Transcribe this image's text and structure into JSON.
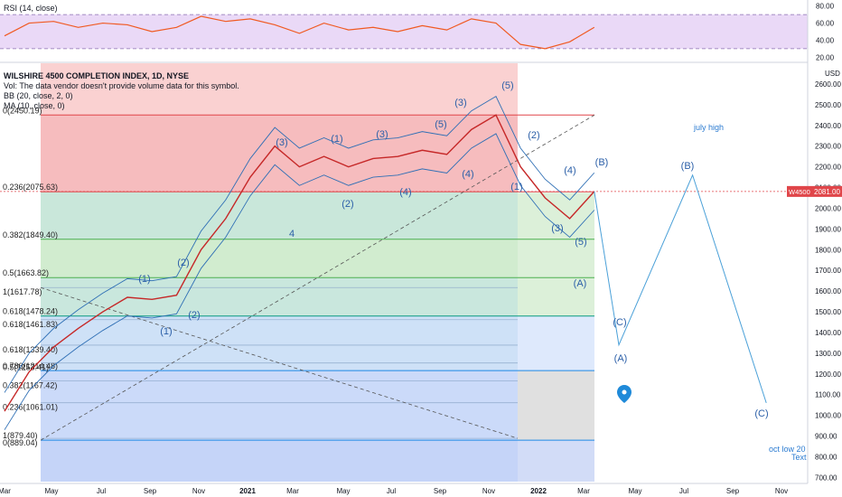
{
  "rsi_panel": {
    "label": "RSI (14, close)",
    "y_ticks": [
      "80.00",
      "60.00",
      "40.00",
      "20.00"
    ],
    "bands": [
      70,
      30
    ],
    "ylim": [
      15,
      85
    ]
  },
  "legend": {
    "title": "WILSHIRE 4500 COMPLETION INDEX, 1D, NYSE",
    "vol_note": "Vol: The data vendor doesn't provide volume data for this symbol.",
    "bb": "BB (20, close, 2, 0)",
    "ma": "MA (10, close, 0)"
  },
  "price_axis": {
    "currency": "USD",
    "ticks": [
      "2600.00",
      "2500.00",
      "2400.00",
      "2300.00",
      "2200.00",
      "2100.00",
      "2000.00",
      "1900.00",
      "1800.00",
      "1700.00",
      "1600.00",
      "1500.00",
      "1400.00",
      "1300.00",
      "1200.00",
      "1100.00",
      "1000.00",
      "900.00",
      "800.00",
      "700.00"
    ],
    "current_symbol": "W4500",
    "current_price": "2081.00"
  },
  "time_axis": {
    "ticks": [
      "Mar",
      "May",
      "Jul",
      "Sep",
      "Nov",
      "2021",
      "Mar",
      "May",
      "Jul",
      "Sep",
      "Nov",
      "2022",
      "Mar",
      "May",
      "Jul",
      "Sep",
      "Nov"
    ]
  },
  "fib_levels": {
    "items": [
      {
        "ratio": 0,
        "label": "0(2450.19)",
        "color": "#e0464a"
      },
      {
        "ratio": 0.236,
        "label": "0.236(2075.63)",
        "color": "#e0464a"
      },
      {
        "ratio": 0.382,
        "label": "0.382(1849.40)",
        "color": "#4caf50"
      },
      {
        "ratio": 0.5,
        "label": "0.5(1663.82)",
        "color": "#4caf50"
      },
      {
        "ratio": 0.618,
        "label": "0.618(1478.24)",
        "color": "#089981"
      },
      {
        "ratio": 0.786,
        "label": "0.786(1214.48)",
        "color": "#1e88e5"
      },
      {
        "ratio": 1,
        "label": "1(879.40)",
        "color": "#1e88e5"
      }
    ],
    "extra_labels": [
      "1(1617.78)",
      "0.618(1461.83)",
      "0.618(1339.40)",
      "0.5(1253.41)",
      "0.382(1167.42)",
      "0.236(1061.01)",
      "0(889.04)"
    ]
  },
  "annotations": {
    "july_high": "july high",
    "oct_low": "oct low  20 1",
    "text_note": "Text"
  },
  "wave_labels": [
    {
      "text": "(1)"
    },
    {
      "text": "(2)"
    },
    {
      "text": "(1)"
    },
    {
      "text": "(2)"
    },
    {
      "text": "(3)"
    },
    {
      "text": "4"
    },
    {
      "text": "(1)"
    },
    {
      "text": "(2)"
    },
    {
      "text": "(3)"
    },
    {
      "text": "(4)"
    },
    {
      "text": "(5)"
    },
    {
      "text": "(3)"
    },
    {
      "text": "(4)"
    },
    {
      "text": "(5)"
    },
    {
      "text": "(1)"
    },
    {
      "text": "(2)"
    },
    {
      "text": "(3)"
    },
    {
      "text": "(4)"
    },
    {
      "text": "(5)"
    },
    {
      "text": "(A)"
    },
    {
      "text": "(B)"
    },
    {
      "text": "(C)"
    },
    {
      "text": "(A)"
    },
    {
      "text": "(B)"
    },
    {
      "text": "(C)"
    }
  ],
  "chart_data": {
    "type": "line",
    "title": "WILSHIRE 4500 COMPLETION INDEX, 1D, NYSE",
    "xlabel": "",
    "ylabel": "",
    "ylim": [
      680,
      2700
    ],
    "x": [
      "2020-03",
      "2020-04",
      "2020-05",
      "2020-06",
      "2020-07",
      "2020-08",
      "2020-09",
      "2020-10",
      "2020-11",
      "2020-12",
      "2021-01",
      "2021-02",
      "2021-03",
      "2021-04",
      "2021-05",
      "2021-06",
      "2021-07",
      "2021-08",
      "2021-09",
      "2021-10",
      "2021-11",
      "2021-12",
      "2022-01",
      "2022-02",
      "2022-03"
    ],
    "series": [
      {
        "values": [
          1020,
          1210,
          1330,
          1420,
          1500,
          1570,
          1560,
          1580,
          1800,
          1950,
          2150,
          2300,
          2200,
          2250,
          2200,
          2240,
          2250,
          2280,
          2260,
          2380,
          2450,
          2200,
          2050,
          1950,
          2081
        ]
      }
    ],
    "projection": [
      {
        "t": "2022-03",
        "v": 2081
      },
      {
        "t": "2022-04",
        "v": 1340
      },
      {
        "t": "2022-07",
        "v": 2160
      },
      {
        "t": "2022-10",
        "v": 1060
      }
    ],
    "rsi": [
      45,
      60,
      62,
      55,
      60,
      58,
      50,
      55,
      68,
      62,
      65,
      58,
      48,
      60,
      52,
      55,
      50,
      57,
      52,
      65,
      60,
      35,
      30,
      38,
      55
    ],
    "grid": true
  }
}
